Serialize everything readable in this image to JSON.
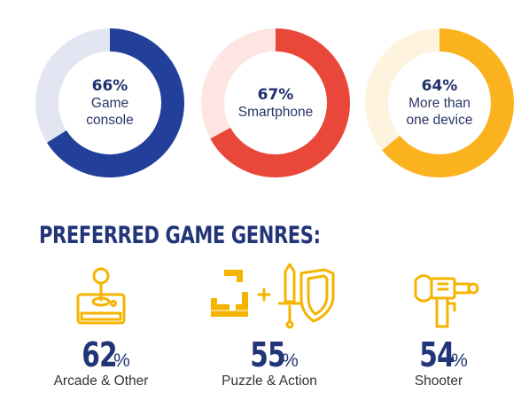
{
  "chart_data": [
    {
      "type": "pie",
      "variant": "donut",
      "slices": [
        {
          "label": "Game console",
          "value": 66,
          "color": "#22409a"
        },
        {
          "label": "",
          "value": 34,
          "color": "#e3e5f2"
        }
      ],
      "display_value": "66%",
      "caption_lines": [
        "Game",
        "console"
      ]
    },
    {
      "type": "pie",
      "variant": "donut",
      "slices": [
        {
          "label": "Smartphone",
          "value": 67,
          "color": "#e9473a"
        },
        {
          "label": "",
          "value": 33,
          "color": "#fde6e2"
        }
      ],
      "display_value": "67%",
      "caption_lines": [
        "Smartphone"
      ]
    },
    {
      "type": "pie",
      "variant": "donut",
      "slices": [
        {
          "label": "More than one device",
          "value": 64,
          "color": "#fbb21f"
        },
        {
          "label": "",
          "value": 36,
          "color": "#fef3df"
        }
      ],
      "display_value": "64%",
      "caption_lines": [
        "More than",
        "one device"
      ]
    },
    {
      "type": "bar",
      "title": "PREFERRED GAME GENRES:",
      "categories": [
        "Arcade & Other",
        "Puzzle & Action",
        "Shooter"
      ],
      "values": [
        62,
        55,
        54
      ],
      "value_labels": [
        "62",
        "55",
        "54"
      ],
      "unit": "%",
      "icons": [
        "joystick-icon",
        "puzzle-blocks-and-sword-shield-icon",
        "blaster-gun-icon"
      ],
      "accent_color": "#f5b400"
    }
  ]
}
